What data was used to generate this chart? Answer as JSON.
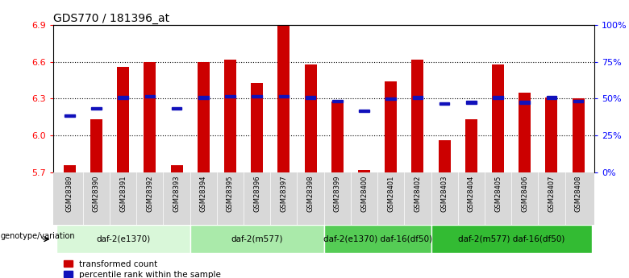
{
  "title": "GDS770 / 181396_at",
  "samples": [
    "GSM28389",
    "GSM28390",
    "GSM28391",
    "GSM28392",
    "GSM28393",
    "GSM28394",
    "GSM28395",
    "GSM28396",
    "GSM28397",
    "GSM28398",
    "GSM28399",
    "GSM28400",
    "GSM28401",
    "GSM28402",
    "GSM28403",
    "GSM28404",
    "GSM28405",
    "GSM28406",
    "GSM28407",
    "GSM28408"
  ],
  "bar_values": [
    5.76,
    6.13,
    6.56,
    6.6,
    5.76,
    6.6,
    6.62,
    6.43,
    6.9,
    6.58,
    6.28,
    5.72,
    6.44,
    6.62,
    5.96,
    6.13,
    6.58,
    6.35,
    6.31,
    6.3
  ],
  "percentile_values": [
    6.16,
    6.22,
    6.31,
    6.32,
    6.22,
    6.31,
    6.32,
    6.32,
    6.32,
    6.31,
    6.28,
    6.2,
    6.3,
    6.31,
    6.26,
    6.27,
    6.31,
    6.27,
    6.31,
    6.28
  ],
  "ylim": [
    5.7,
    6.9
  ],
  "yticks": [
    5.7,
    6.0,
    6.3,
    6.6,
    6.9
  ],
  "right_yticks": [
    0,
    25,
    50,
    75,
    100
  ],
  "bar_color": "#cc0000",
  "percentile_color": "#1111bb",
  "groups": [
    {
      "label": "daf-2(e1370)",
      "start": 0,
      "end": 4,
      "color": "#d9f7d9"
    },
    {
      "label": "daf-2(m577)",
      "start": 5,
      "end": 9,
      "color": "#aaeaaa"
    },
    {
      "label": "daf-2(e1370) daf-16(df50)",
      "start": 10,
      "end": 13,
      "color": "#55cc55"
    },
    {
      "label": "daf-2(m577) daf-16(df50)",
      "start": 14,
      "end": 19,
      "color": "#33bb33"
    }
  ],
  "group_row_label": "genotype/variation",
  "legend_items": [
    "transformed count",
    "percentile rank within the sample"
  ],
  "bar_width": 0.45,
  "xlim": [
    -0.6,
    19.6
  ]
}
